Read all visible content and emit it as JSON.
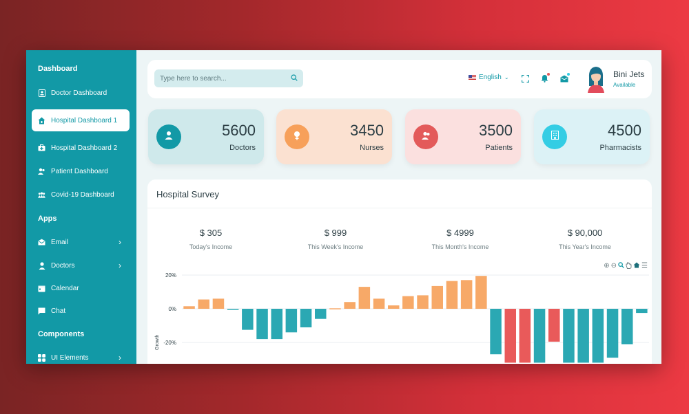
{
  "sidebar": {
    "sections": {
      "dashboard": "Dashboard",
      "apps": "Apps",
      "components": "Components"
    },
    "items": [
      {
        "label": "Doctor Dashboard",
        "icon": "id-card-icon"
      },
      {
        "label": "Hospital Dashboard 1",
        "icon": "house-icon"
      },
      {
        "label": "Hospital Dashboard 2",
        "icon": "medkit-icon"
      },
      {
        "label": "Patient Dashboard",
        "icon": "users-icon"
      },
      {
        "label": "Covid-19 Dashboard",
        "icon": "group-icon"
      },
      {
        "label": "Email",
        "icon": "envelope-icon"
      },
      {
        "label": "Doctors",
        "icon": "user-icon"
      },
      {
        "label": "Calendar",
        "icon": "calendar-icon"
      },
      {
        "label": "Chat",
        "icon": "chat-icon"
      },
      {
        "label": "UI Elements",
        "icon": "grid-icon"
      }
    ]
  },
  "header": {
    "search_placeholder": "Type here to search...",
    "language": "English",
    "user_name": "Bini Jets",
    "user_status": "Available"
  },
  "stats": [
    {
      "value": "5600",
      "label": "Doctors",
      "bg": "#cfe9eb",
      "accent": "#1299a6",
      "icon": "user-icon"
    },
    {
      "value": "3450",
      "label": "Nurses",
      "bg": "#fbe1d1",
      "accent": "#f7a05a",
      "icon": "female-icon"
    },
    {
      "value": "3500",
      "label": "Patients",
      "bg": "#fbe0df",
      "accent": "#e35a5a",
      "icon": "users-icon"
    },
    {
      "value": "4500",
      "label": "Pharmacists",
      "bg": "#dcf2f6",
      "accent": "#34cde4",
      "icon": "building-icon"
    }
  ],
  "survey": {
    "title": "Hospital Survey",
    "incomes": [
      {
        "value": "$ 305",
        "label": "Today's Income"
      },
      {
        "value": "$ 999",
        "label": "This Week's Income"
      },
      {
        "value": "$ 4999",
        "label": "This Month's Income"
      },
      {
        "value": "$ 90,000",
        "label": "This Year's Income"
      }
    ]
  },
  "chart_data": {
    "type": "bar",
    "ylabel": "Growth",
    "yticks": [
      "20%",
      "0%",
      "-20%"
    ],
    "ylim": [
      -32,
      22
    ],
    "values": [
      1.5,
      5.5,
      6,
      -0.5,
      -12.5,
      -18,
      -18,
      -14,
      -11,
      -6,
      0.3,
      4,
      13,
      6,
      2,
      7.5,
      8,
      13.5,
      16.5,
      17,
      19.5,
      -27,
      -32,
      -32,
      -32,
      -19.5,
      -32,
      -32,
      -32,
      -29,
      -21,
      -2.5
    ],
    "colors": {
      "positive": "#f7a968",
      "negative": "#2ba8b3",
      "highlight": "#e95a5a"
    },
    "highlight_indices": [
      22,
      23,
      25
    ]
  }
}
